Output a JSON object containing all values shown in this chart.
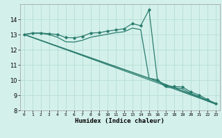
{
  "title": "",
  "xlabel": "Humidex (Indice chaleur)",
  "ylabel": "",
  "background_color": "#d4f0eb",
  "grid_color": "#b8e0d8",
  "line_color": "#2a7d6e",
  "xlim": [
    -0.5,
    23.5
  ],
  "ylim": [
    8,
    15
  ],
  "yticks": [
    8,
    9,
    10,
    11,
    12,
    13,
    14
  ],
  "xticks": [
    0,
    1,
    2,
    3,
    4,
    5,
    6,
    7,
    8,
    9,
    10,
    11,
    12,
    13,
    14,
    15,
    16,
    17,
    18,
    19,
    20,
    21,
    22,
    23
  ],
  "series": [
    {
      "x": [
        0,
        1,
        2,
        3,
        4,
        5,
        6,
        7,
        8,
        9,
        10,
        11,
        12,
        13,
        14,
        15,
        16,
        17,
        18,
        19,
        20,
        21,
        22,
        23
      ],
      "y": [
        13.0,
        13.1,
        13.1,
        13.05,
        13.0,
        12.8,
        12.78,
        12.88,
        13.1,
        13.12,
        13.22,
        13.3,
        13.38,
        13.72,
        13.58,
        14.62,
        10.02,
        9.62,
        9.57,
        9.55,
        9.22,
        9.02,
        8.72,
        8.46
      ],
      "marker": "D",
      "markersize": 1.8,
      "linewidth": 0.9
    },
    {
      "x": [
        0,
        1,
        2,
        3,
        4,
        5,
        6,
        7,
        8,
        9,
        10,
        11,
        12,
        13,
        14,
        15,
        16,
        17,
        18,
        19,
        20,
        21,
        22,
        23
      ],
      "y": [
        13.0,
        13.08,
        13.08,
        13.0,
        12.82,
        12.52,
        12.5,
        12.62,
        12.82,
        12.92,
        13.02,
        13.12,
        13.18,
        13.42,
        13.32,
        10.12,
        10.02,
        9.52,
        9.5,
        9.42,
        9.12,
        8.92,
        8.62,
        8.42
      ],
      "marker": null,
      "markersize": 0,
      "linewidth": 0.9
    },
    {
      "x": [
        0,
        15,
        23
      ],
      "y": [
        13.0,
        10.12,
        8.46
      ],
      "marker": null,
      "markersize": 0,
      "linewidth": 1.1
    },
    {
      "x": [
        0,
        15,
        23
      ],
      "y": [
        13.0,
        10.02,
        8.42
      ],
      "marker": null,
      "markersize": 0,
      "linewidth": 0.9
    }
  ]
}
